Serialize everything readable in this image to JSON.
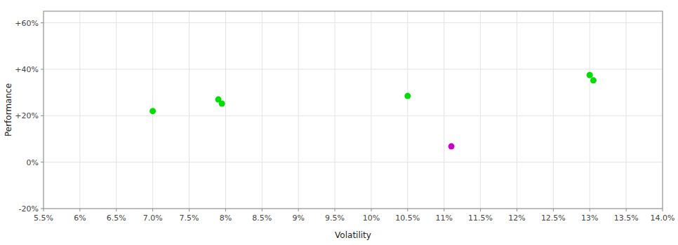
{
  "chart_data": {
    "type": "scatter",
    "x_label": "Volatility",
    "y_label": "Performance",
    "xlim": [
      0.055,
      0.14
    ],
    "ylim": [
      -0.2,
      0.65
    ],
    "xticks": [
      {
        "value": 0.055,
        "label": "5.5%"
      },
      {
        "value": 0.06,
        "label": "6%"
      },
      {
        "value": 0.065,
        "label": "6.5%"
      },
      {
        "value": 0.07,
        "label": "7.0%"
      },
      {
        "value": 0.075,
        "label": "7.5%"
      },
      {
        "value": 0.08,
        "label": "8%"
      },
      {
        "value": 0.085,
        "label": "8.5%"
      },
      {
        "value": 0.09,
        "label": "9%"
      },
      {
        "value": 0.095,
        "label": "9.5%"
      },
      {
        "value": 0.1,
        "label": "10%"
      },
      {
        "value": 0.105,
        "label": "10.5%"
      },
      {
        "value": 0.11,
        "label": "11%"
      },
      {
        "value": 0.115,
        "label": "11.5%"
      },
      {
        "value": 0.12,
        "label": "12%"
      },
      {
        "value": 0.125,
        "label": "12.5%"
      },
      {
        "value": 0.13,
        "label": "13%"
      },
      {
        "value": 0.135,
        "label": "13.5%"
      },
      {
        "value": 0.14,
        "label": "14.0%"
      }
    ],
    "yticks": [
      {
        "value": -0.2,
        "label": "-20%"
      },
      {
        "value": 0.0,
        "label": "0%"
      },
      {
        "value": 0.2,
        "label": "+20%"
      },
      {
        "value": 0.4,
        "label": "+40%"
      },
      {
        "value": 0.6,
        "label": "+60%"
      }
    ],
    "grid": true,
    "series": [
      {
        "color": "#00dd00",
        "x": [
          0.07,
          0.079,
          0.0795,
          0.105,
          0.13,
          0.1305
        ],
        "values": [
          0.22,
          0.27,
          0.252,
          0.285,
          0.375,
          0.352
        ]
      },
      {
        "color": "#cc00cc",
        "x": [
          0.111
        ],
        "values": [
          0.068
        ]
      }
    ]
  }
}
